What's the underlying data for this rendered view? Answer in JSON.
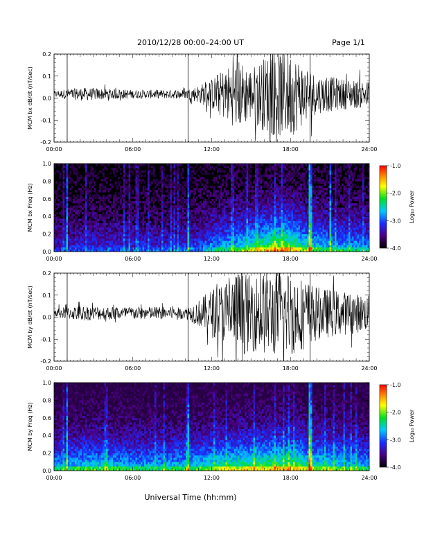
{
  "header": {
    "title": "2010/12/28  00:00–24:00 UT",
    "page": "Page 1/1"
  },
  "xlabel": "Universal Time (hh:mm)",
  "x_ticks": [
    "00:00",
    "06:00",
    "12:00",
    "18:00",
    "24:00"
  ],
  "colorbar": {
    "label": "Log₁₀ Power",
    "ticks": [
      "-1.0",
      "-2.0",
      "-3.0",
      "-4.0"
    ],
    "range": [
      -4.0,
      -1.0
    ]
  },
  "chart_data": [
    {
      "type": "line",
      "title": "",
      "ylabel": "MCM bx dB/dt (nT/sec)",
      "xlim": [
        0,
        24
      ],
      "ylim": [
        -0.2,
        0.2
      ],
      "y_ticks": [
        "0.2",
        "0.1",
        "0.0",
        "-0.1",
        "-0.2"
      ],
      "y_tick_values": [
        0.2,
        0.1,
        0.0,
        -0.1,
        -0.2
      ],
      "vertical_markers_hours": [
        1.0,
        10.2,
        19.5
      ],
      "envelope": [
        {
          "hour": 0,
          "amp": 0.015
        },
        {
          "hour": 2,
          "amp": 0.03
        },
        {
          "hour": 4,
          "amp": 0.025
        },
        {
          "hour": 6,
          "amp": 0.02
        },
        {
          "hour": 8,
          "amp": 0.02
        },
        {
          "hour": 10,
          "amp": 0.02
        },
        {
          "hour": 11,
          "amp": 0.04
        },
        {
          "hour": 12,
          "amp": 0.07
        },
        {
          "hour": 13,
          "amp": 0.12
        },
        {
          "hour": 14,
          "amp": 0.16
        },
        {
          "hour": 15,
          "amp": 0.12
        },
        {
          "hour": 16,
          "amp": 0.17
        },
        {
          "hour": 17,
          "amp": 0.2
        },
        {
          "hour": 18,
          "amp": 0.2
        },
        {
          "hour": 19,
          "amp": 0.14
        },
        {
          "hour": 20,
          "amp": 0.09
        },
        {
          "hour": 22,
          "amp": 0.07
        },
        {
          "hour": 24,
          "amp": 0.06
        }
      ]
    },
    {
      "type": "heatmap",
      "title": "",
      "ylabel": "MCM bx Freq (Hz)",
      "xlim": [
        0,
        24
      ],
      "ylim": [
        0.0,
        1.0
      ],
      "y_ticks": [
        "1.0",
        "0.8",
        "0.6",
        "0.4",
        "0.2",
        "0.0"
      ],
      "y_tick_values": [
        1.0,
        0.8,
        0.6,
        0.4,
        0.2,
        0.0
      ],
      "background_log_power": -4.0,
      "activity": [
        {
          "hour": 0,
          "level": 0.25
        },
        {
          "hour": 3,
          "level": 0.3
        },
        {
          "hour": 6,
          "level": 0.3
        },
        {
          "hour": 9,
          "level": 0.3
        },
        {
          "hour": 11,
          "level": 0.35
        },
        {
          "hour": 12,
          "level": 0.45
        },
        {
          "hour": 14,
          "level": 0.55
        },
        {
          "hour": 16,
          "level": 0.7
        },
        {
          "hour": 17.5,
          "level": 0.8
        },
        {
          "hour": 19,
          "level": 0.6
        },
        {
          "hour": 21,
          "level": 0.5
        },
        {
          "hour": 24,
          "level": 0.45
        }
      ],
      "bright_columns_hours": [
        1.0,
        10.2,
        19.5,
        21.0
      ]
    },
    {
      "type": "line",
      "title": "",
      "ylabel": "MCM by dB/dt (nT/sec)",
      "xlim": [
        0,
        24
      ],
      "ylim": [
        -0.2,
        0.2
      ],
      "y_ticks": [
        "0.2",
        "0.1",
        "0.0",
        "-0.1",
        "-0.2"
      ],
      "y_tick_values": [
        0.2,
        0.1,
        0.0,
        -0.1,
        -0.2
      ],
      "vertical_markers_hours": [
        1.0,
        10.2,
        19.5
      ],
      "envelope": [
        {
          "hour": 0,
          "amp": 0.02
        },
        {
          "hour": 2,
          "amp": 0.035
        },
        {
          "hour": 4,
          "amp": 0.03
        },
        {
          "hour": 6,
          "amp": 0.03
        },
        {
          "hour": 8,
          "amp": 0.03
        },
        {
          "hour": 10,
          "amp": 0.025
        },
        {
          "hour": 11,
          "amp": 0.06
        },
        {
          "hour": 12,
          "amp": 0.11
        },
        {
          "hour": 13,
          "amp": 0.15
        },
        {
          "hour": 14,
          "amp": 0.2
        },
        {
          "hour": 15,
          "amp": 0.17
        },
        {
          "hour": 16,
          "amp": 0.19
        },
        {
          "hour": 17,
          "amp": 0.2
        },
        {
          "hour": 18,
          "amp": 0.2
        },
        {
          "hour": 19,
          "amp": 0.16
        },
        {
          "hour": 20,
          "amp": 0.12
        },
        {
          "hour": 22,
          "amp": 0.1
        },
        {
          "hour": 24,
          "amp": 0.08
        }
      ]
    },
    {
      "type": "heatmap",
      "title": "",
      "ylabel": "MCM by Freq (Hz)",
      "xlim": [
        0,
        24
      ],
      "ylim": [
        0.0,
        1.0
      ],
      "y_ticks": [
        "1.0",
        "0.8",
        "0.6",
        "0.4",
        "0.2",
        "0.0"
      ],
      "y_tick_values": [
        1.0,
        0.8,
        0.6,
        0.4,
        0.2,
        0.0
      ],
      "background_log_power": -3.2,
      "activity": [
        {
          "hour": 0,
          "level": 0.5
        },
        {
          "hour": 3,
          "level": 0.55
        },
        {
          "hour": 6,
          "level": 0.5
        },
        {
          "hour": 9,
          "level": 0.5
        },
        {
          "hour": 11,
          "level": 0.55
        },
        {
          "hour": 12,
          "level": 0.6
        },
        {
          "hour": 14,
          "level": 0.65
        },
        {
          "hour": 16,
          "level": 0.7
        },
        {
          "hour": 18,
          "level": 0.72
        },
        {
          "hour": 20,
          "level": 0.62
        },
        {
          "hour": 22,
          "level": 0.55
        },
        {
          "hour": 24,
          "level": 0.5
        }
      ],
      "bright_columns_hours": [
        1.0,
        10.2,
        19.5
      ]
    }
  ]
}
